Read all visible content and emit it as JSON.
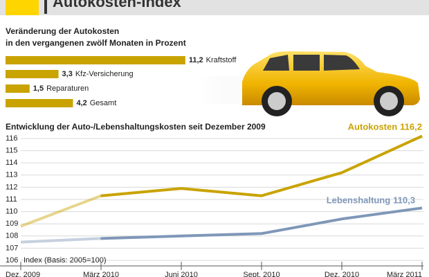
{
  "header": {
    "title": "Autokosten-Index"
  },
  "chart_data": [
    {
      "type": "bar",
      "orientation": "horizontal",
      "title": [
        "Veränderung der Autokosten",
        "in den vergangenen zwölf Monaten in Prozent"
      ],
      "categories": [
        "Kraftstoff",
        "Kfz-Versicherung",
        "Reparaturen",
        "Gesamt"
      ],
      "values": [
        11.2,
        3.3,
        1.5,
        4.2
      ],
      "value_labels": [
        "11,2",
        "3,3",
        "1,5",
        "4,2"
      ],
      "color": "#c9a300"
    },
    {
      "type": "line",
      "title": "Entwicklung der Auto-/Lebenshaltungskosten seit Dezember 2009",
      "annotation": "Index (Basis: 2005=100)",
      "categories": [
        "Dez. 2009",
        "März 2010",
        "Juni 2010",
        "Sept. 2010",
        "Dez. 2010",
        "März 2011"
      ],
      "series": [
        {
          "name": "Autokosten",
          "color": "#c9a300",
          "values": [
            108.8,
            111.3,
            111.9,
            111.3,
            113.2,
            116.2
          ],
          "value_labels": [
            null,
            null,
            null,
            null,
            null,
            "116,2"
          ]
        },
        {
          "name": "Lebenshaltung",
          "color": "#7f97b8",
          "values": [
            107.5,
            107.8,
            108.0,
            108.2,
            109.4,
            110.3
          ],
          "value_labels": [
            null,
            null,
            null,
            null,
            null,
            "110,3"
          ]
        }
      ],
      "ylim": [
        106,
        116
      ],
      "yticks": [
        106,
        107,
        108,
        109,
        110,
        111,
        112,
        113,
        114,
        115,
        116
      ],
      "grid": true
    }
  ]
}
